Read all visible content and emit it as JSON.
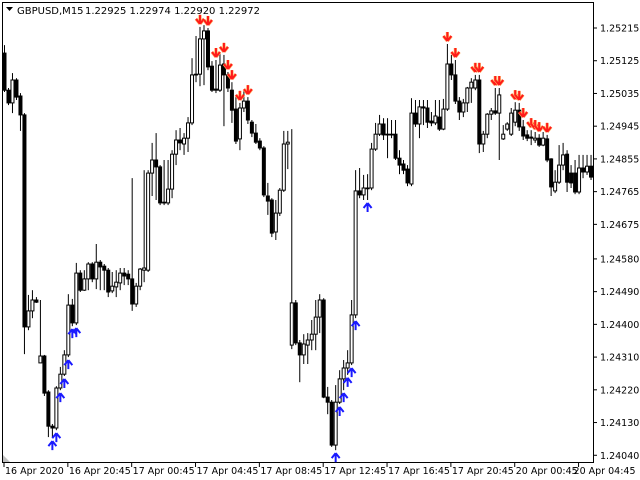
{
  "header": {
    "symbol": "GBPUSD,M15",
    "ohlc": "1.22925 1.22974 1.22920 1.22972",
    "menu_icon": "triangle-down-icon"
  },
  "colors": {
    "background": "#ffffff",
    "foreground": "#000000",
    "bull_body": "#ffffff",
    "bear_body": "#000000",
    "buy_arrow": "#1a1aff",
    "sell_arrow": "#ff1a1a"
  },
  "chart_data": {
    "type": "candlestick",
    "title": "",
    "grid": false,
    "ylim": [
      1.2402,
      1.2529
    ],
    "y_ticks": [
      "1.25215",
      "1.25125",
      "1.25035",
      "1.24945",
      "1.24855",
      "1.24765",
      "1.24675",
      "1.24580",
      "1.24490",
      "1.24400",
      "1.24310",
      "1.24220",
      "1.24130",
      "1.24040"
    ],
    "x_ticks": [
      {
        "label": "16 Apr 2020",
        "bar": 0
      },
      {
        "label": "16 Apr 20:45",
        "bar": 16
      },
      {
        "label": "17 Apr 00:45",
        "bar": 32
      },
      {
        "label": "17 Apr 04:45",
        "bar": 48
      },
      {
        "label": "17 Apr 08:45",
        "bar": 64
      },
      {
        "label": "17 Apr 12:45",
        "bar": 80
      },
      {
        "label": "17 Apr 16:45",
        "bar": 96
      },
      {
        "label": "17 Apr 20:45",
        "bar": 112
      },
      {
        "label": "20 Apr 00:45",
        "bar": 128
      },
      {
        "label": "20 Apr 04:45",
        "bar": 144
      }
    ],
    "candles_ohlc": [
      [
        1.25146,
        1.25168,
        1.25039,
        1.25044
      ],
      [
        1.25044,
        1.2505,
        1.25003,
        1.25009
      ],
      [
        1.25009,
        1.25091,
        1.24981,
        1.25072
      ],
      [
        1.25072,
        1.25077,
        1.25017,
        1.25025
      ],
      [
        1.25028,
        1.25036,
        1.24932,
        1.24976
      ],
      [
        1.24976,
        1.24981,
        1.24318,
        1.24393
      ],
      [
        1.24393,
        1.24481,
        1.24384,
        1.24437
      ],
      [
        1.24437,
        1.24494,
        1.24417,
        1.24467
      ],
      [
        1.24467,
        1.24475,
        1.24459,
        1.24461
      ],
      [
        1.24294,
        1.24467,
        1.24294,
        1.24313
      ],
      [
        1.24313,
        1.24316,
        1.24203,
        1.24211
      ],
      [
        1.24214,
        1.24219,
        1.2409,
        1.2412
      ],
      [
        1.2412,
        1.24126,
        1.24087,
        1.24115
      ],
      [
        1.24115,
        1.2423,
        1.24109,
        1.24225
      ],
      [
        1.24225,
        1.24283,
        1.24219,
        1.24263
      ],
      [
        1.24263,
        1.24329,
        1.24258,
        1.24316
      ],
      [
        1.24316,
        1.24483,
        1.2431,
        1.24453
      ],
      [
        1.24453,
        1.2447,
        1.24395,
        1.24404
      ],
      [
        1.24404,
        1.24569,
        1.24398,
        1.24541
      ],
      [
        1.24541,
        1.24549,
        1.24489,
        1.24494
      ],
      [
        1.24494,
        1.24549,
        1.24492,
        1.24525
      ],
      [
        1.24525,
        1.24571,
        1.24494,
        1.24566
      ],
      [
        1.24566,
        1.24571,
        1.24516,
        1.24525
      ],
      [
        1.24525,
        1.24621,
        1.24497,
        1.24571
      ],
      [
        1.24571,
        1.24577,
        1.24494,
        1.24558
      ],
      [
        1.2456,
        1.24566,
        1.24494,
        1.24549
      ],
      [
        1.24549,
        1.24555,
        1.24475,
        1.24489
      ],
      [
        1.24492,
        1.24544,
        1.24486,
        1.24505
      ],
      [
        1.24503,
        1.24549,
        1.24475,
        1.24516
      ],
      [
        1.24514,
        1.24555,
        1.24494,
        1.24541
      ],
      [
        1.24541,
        1.24555,
        1.24508,
        1.24533
      ],
      [
        1.24538,
        1.24549,
        1.24508,
        1.24525
      ],
      [
        1.24525,
        1.24802,
        1.24437,
        1.24456
      ],
      [
        1.24456,
        1.24514,
        1.24448,
        1.24505
      ],
      [
        1.24505,
        1.24555,
        1.24494,
        1.24552
      ],
      [
        1.24549,
        1.24824,
        1.24516,
        1.24555
      ],
      [
        1.24549,
        1.24824,
        1.24544,
        1.24816
      ],
      [
        1.24816,
        1.24899,
        1.24753,
        1.24852
      ],
      [
        1.24852,
        1.24926,
        1.24742,
        1.24833
      ],
      [
        1.24833,
        1.24838,
        1.24728,
        1.24734
      ],
      [
        1.24736,
        1.24852,
        1.24728,
        1.24734
      ],
      [
        1.24734,
        1.24852,
        1.24728,
        1.24772
      ],
      [
        1.24772,
        1.24879,
        1.24747,
        1.24868
      ],
      [
        1.24868,
        1.24934,
        1.24838,
        1.24907
      ],
      [
        1.24907,
        1.2494,
        1.24879,
        1.24899
      ],
      [
        1.24896,
        1.24926,
        1.24866,
        1.24912
      ],
      [
        1.24912,
        1.2497,
        1.24874,
        1.24954
      ],
      [
        1.24954,
        1.25132,
        1.24948,
        1.25086
      ],
      [
        1.25086,
        1.25193,
        1.25066,
        1.25088
      ],
      [
        1.25088,
        1.25218,
        1.25055,
        1.25185
      ],
      [
        1.25185,
        1.25223,
        1.25058,
        1.25207
      ],
      [
        1.25207,
        1.25215,
        1.25099,
        1.25108
      ],
      [
        1.2511,
        1.25124,
        1.25039,
        1.25044
      ],
      [
        1.25047,
        1.25127,
        1.25036,
        1.25044
      ],
      [
        1.25044,
        1.25149,
        1.25039,
        1.25113
      ],
      [
        1.25116,
        1.25141,
        1.24945,
        1.25086
      ],
      [
        1.25086,
        1.25094,
        1.25039,
        1.2505
      ],
      [
        1.25044,
        1.25066,
        1.24954,
        1.24989
      ],
      [
        1.24992,
        1.25031,
        1.24896,
        1.24904
      ],
      [
        1.2491,
        1.25009,
        1.24879,
        1.24995
      ],
      [
        1.24995,
        1.25044,
        1.24984,
        1.25014
      ],
      [
        1.25014,
        1.25025,
        1.24951,
        1.24962
      ],
      [
        1.24956,
        1.24962,
        1.24915,
        1.24926
      ],
      [
        1.24926,
        1.24951,
        1.24896,
        1.24901
      ],
      [
        1.24904,
        1.24912,
        1.24879,
        1.24885
      ],
      [
        1.24885,
        1.2489,
        1.2475,
        1.24756
      ],
      [
        1.24753,
        1.24789,
        1.24701,
        1.24739
      ],
      [
        1.24742,
        1.24747,
        1.2464,
        1.24651
      ],
      [
        1.24654,
        1.24742,
        1.24632,
        1.24706
      ],
      [
        1.24706,
        1.24775,
        1.24698,
        1.24769
      ],
      [
        1.24769,
        1.24932,
        1.24764,
        1.24896
      ],
      [
        1.24896,
        1.24932,
        1.24827,
        1.24901
      ],
      [
        1.24343,
        1.24937,
        1.24332,
        1.24459
      ],
      [
        1.24459,
        1.24467,
        1.24343,
        1.24349
      ],
      [
        1.24349,
        1.24357,
        1.24241,
        1.24316
      ],
      [
        1.24316,
        1.24373,
        1.24291,
        1.24346
      ],
      [
        1.24343,
        1.24376,
        1.24291,
        1.24357
      ],
      [
        1.24357,
        1.24412,
        1.24329,
        1.24373
      ],
      [
        1.24373,
        1.24467,
        1.24329,
        1.2442
      ],
      [
        1.2442,
        1.24483,
        1.24376,
        1.24467
      ],
      [
        1.24467,
        1.24472,
        1.24197,
        1.242
      ],
      [
        1.242,
        1.24228,
        1.24153,
        1.24186
      ],
      [
        1.24186,
        1.24192,
        1.24063,
        1.24068
      ],
      [
        1.24068,
        1.24233,
        1.24054,
        1.24186
      ],
      [
        1.24186,
        1.24274,
        1.24181,
        1.2425
      ],
      [
        1.2425,
        1.24302,
        1.24219,
        1.2428
      ],
      [
        1.2428,
        1.24329,
        1.24261,
        1.24294
      ],
      [
        1.24294,
        1.24467,
        1.24288,
        1.24426
      ],
      [
        1.24426,
        1.24824,
        1.24417,
        1.24767
      ],
      [
        1.24767,
        1.2483,
        1.24747,
        1.24756
      ],
      [
        1.24756,
        1.24811,
        1.24742,
        1.24775
      ],
      [
        1.24775,
        1.24813,
        1.24742,
        1.24775
      ],
      [
        1.24775,
        1.24899,
        1.24769,
        1.24882
      ],
      [
        1.24882,
        1.24954,
        1.24877,
        1.24923
      ],
      [
        1.24923,
        1.24976,
        1.24918,
        1.24951
      ],
      [
        1.24951,
        1.24967,
        1.24907,
        1.24921
      ],
      [
        1.24921,
        1.24967,
        1.24857,
        1.24923
      ],
      [
        1.24923,
        1.24962,
        1.24912,
        1.24921
      ],
      [
        1.24923,
        1.24962,
        1.24852,
        1.24857
      ],
      [
        1.24857,
        1.24879,
        1.24813,
        1.24838
      ],
      [
        1.24841,
        1.24852,
        1.24813,
        1.24824
      ],
      [
        1.24827,
        1.24838,
        1.2478,
        1.24789
      ],
      [
        1.24786,
        1.25022,
        1.2478,
        1.24981
      ],
      [
        1.24981,
        1.25017,
        1.24943,
        1.24951
      ],
      [
        1.24951,
        1.25017,
        1.24912,
        1.24998
      ],
      [
        1.24998,
        1.25017,
        1.24948,
        1.24995
      ],
      [
        1.24995,
        1.25017,
        1.2494,
        1.24956
      ],
      [
        1.24959,
        1.24984,
        1.24945,
        1.24954
      ],
      [
        1.24954,
        1.25017,
        1.24948,
        1.24973
      ],
      [
        1.2497,
        1.25017,
        1.24932,
        1.24937
      ],
      [
        1.24937,
        1.2502,
        1.24934,
        1.24992
      ],
      [
        1.24992,
        1.25171,
        1.24987,
        1.25116
      ],
      [
        1.25116,
        1.25141,
        1.25072,
        1.25086
      ],
      [
        1.25086,
        1.25127,
        1.25006,
        1.25014
      ],
      [
        1.25014,
        1.25025,
        1.24962,
        1.24984
      ],
      [
        1.24984,
        1.2502,
        1.2497,
        1.25009
      ],
      [
        1.25009,
        1.25053,
        1.24984,
        1.2505
      ],
      [
        1.2505,
        1.25077,
        1.25009,
        1.25066
      ],
      [
        1.2505,
        1.25086,
        1.25044,
        1.25072
      ],
      [
        1.25072,
        1.25086,
        1.24871,
        1.24896
      ],
      [
        1.24896,
        1.24932,
        1.24874,
        1.24923
      ],
      [
        1.24923,
        1.24981,
        1.24912,
        1.24978
      ],
      [
        1.24978,
        1.24995,
        1.24962,
        1.24987
      ],
      [
        1.24987,
        1.2505,
        1.24976,
        1.24981
      ],
      [
        1.24981,
        1.2505,
        1.24852,
        1.25031
      ],
      [
        1.2491,
        1.24948,
        1.24907,
        1.24923
      ],
      [
        1.24937,
        1.24956,
        1.24932,
        1.24951
      ],
      [
        1.24923,
        1.24995,
        1.24918,
        1.24981
      ],
      [
        1.24956,
        1.25011,
        1.24945,
        1.24989
      ],
      [
        1.24989,
        1.25009,
        1.24932,
        1.24943
      ],
      [
        1.24943,
        1.24962,
        1.24907,
        1.24918
      ],
      [
        1.24921,
        1.24934,
        1.24904,
        1.24912
      ],
      [
        1.24915,
        1.24934,
        1.24893,
        1.24912
      ],
      [
        1.24907,
        1.24929,
        1.24899,
        1.24912
      ],
      [
        1.24912,
        1.24923,
        1.24888,
        1.24893
      ],
      [
        1.24893,
        1.24929,
        1.2489,
        1.24912
      ],
      [
        1.2491,
        1.24921,
        1.24846,
        1.24852
      ],
      [
        1.24855,
        1.24857,
        1.24753,
        1.24778
      ],
      [
        1.24767,
        1.24824,
        1.24761,
        1.24791
      ],
      [
        1.24791,
        1.24893,
        1.24786,
        1.24838
      ],
      [
        1.24838,
        1.24899,
        1.24824,
        1.24866
      ],
      [
        1.24868,
        1.24879,
        1.24764,
        1.24791
      ],
      [
        1.24816,
        1.24838,
        1.24775,
        1.24789
      ],
      [
        1.24816,
        1.24852,
        1.24758,
        1.24764
      ],
      [
        1.24764,
        1.24866,
        1.24758,
        1.2483
      ],
      [
        1.2483,
        1.24866,
        1.24802,
        1.24819
      ],
      [
        1.24819,
        1.24866,
        1.24811,
        1.24835
      ],
      [
        1.24835,
        1.24866,
        1.24797,
        1.24805
      ]
    ],
    "buy_arrows_bars": [
      12,
      13,
      14,
      15,
      16,
      17,
      18,
      83,
      84,
      85,
      86,
      87,
      88,
      91
    ],
    "sell_arrows_bars": [
      49,
      51,
      53,
      55,
      56,
      57,
      59,
      61,
      111,
      113,
      118,
      119,
      123,
      124,
      128,
      129,
      130,
      132,
      133,
      134,
      136
    ]
  }
}
